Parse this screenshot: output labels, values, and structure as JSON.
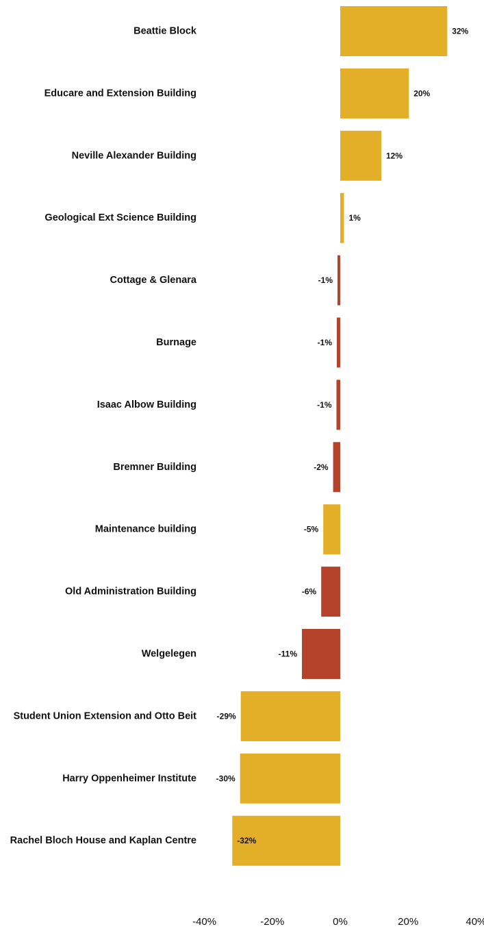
{
  "chart_data": {
    "type": "bar",
    "orientation": "horizontal",
    "title": "",
    "xlabel": "",
    "ylabel": "",
    "xlim": [
      -40,
      40
    ],
    "x_ticks": [
      -40,
      -20,
      0,
      20,
      40
    ],
    "x_tick_labels": [
      "-40%",
      "-20%",
      "0%",
      "20%",
      "40%"
    ],
    "grid": false,
    "legend": "none",
    "value_format": "percent",
    "colors": {
      "gold": "#E4AF28",
      "red": "#B5432C"
    },
    "categories": [
      "Beattie Block",
      "Educare and Extension Building",
      "Neville Alexander Building",
      "Geological Ext Science Building",
      "Cottage & Glenara",
      "Burnage",
      "Isaac Albow Building",
      "Bremner Building",
      "Maintenance building",
      "Old Administration Building",
      "Welgelegen",
      "Student Union Extension and Otto Beit",
      "Harry Oppenheimer Institute",
      "Rachel Bloch House and Kaplan Centre"
    ],
    "values": [
      31.5,
      20.2,
      12.1,
      1.1,
      -0.8,
      -1.0,
      -1.1,
      -2.1,
      -5.0,
      -5.6,
      -11.3,
      -29.3,
      -29.5,
      -31.8
    ],
    "value_labels": [
      "32%",
      "20%",
      "12%",
      "1%",
      "-1%",
      "-1%",
      "-1%",
      "-2%",
      "-5%",
      "-6%",
      "-11%",
      "-29%",
      "-30%",
      "-32%"
    ],
    "bar_colors": [
      "gold",
      "gold",
      "gold",
      "gold",
      "red",
      "red",
      "red",
      "red",
      "gold",
      "red",
      "red",
      "gold",
      "gold",
      "gold"
    ]
  }
}
